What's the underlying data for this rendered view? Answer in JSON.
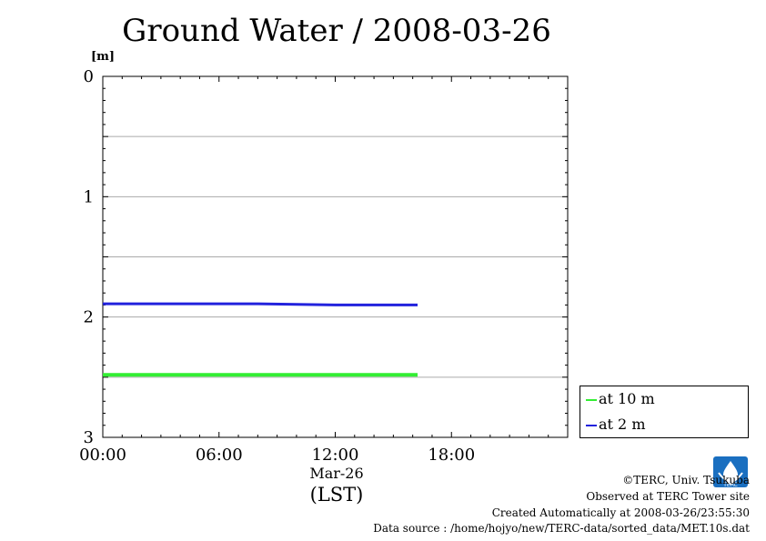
{
  "chart_data": {
    "type": "line",
    "title": "Ground Water / 2008-03-26",
    "ylabel_unit": "[m]",
    "yaxis": {
      "inverted": true,
      "ylim": [
        0,
        3
      ],
      "ticks": [
        "0",
        "1",
        "2",
        "3"
      ]
    },
    "xaxis": {
      "xlim": [
        "00:00",
        "24:00"
      ],
      "ticks": [
        "00:00",
        "06:00",
        "12:00",
        "18:00"
      ],
      "date_label": "Mar-26",
      "timezone_label": "(LST)"
    },
    "grid": true,
    "legend_placement": "bottom-right outside",
    "series": [
      {
        "name": "at 10 m",
        "color": "#33ee33",
        "x": [
          "00:00",
          "04:00",
          "08:00",
          "12:00",
          "16:15"
        ],
        "y": [
          2.48,
          2.48,
          2.48,
          2.48,
          2.48
        ]
      },
      {
        "name": "at 2 m",
        "color": "#2222dd",
        "x": [
          "00:00",
          "04:00",
          "08:00",
          "12:00",
          "16:15"
        ],
        "y": [
          1.89,
          1.89,
          1.89,
          1.9,
          1.9
        ]
      }
    ]
  },
  "credits": {
    "copyright": "©TERC, Univ. Tsukuba",
    "observed": "Observed at TERC Tower site",
    "created": "Created Automatically at 2008-03-26/23:55:30",
    "source": "Data source : /home/hojyo/new/TERC-data/sorted_data/MET.10s.dat"
  },
  "logo": {
    "text": "TERC",
    "color": "#1a6fc0"
  }
}
